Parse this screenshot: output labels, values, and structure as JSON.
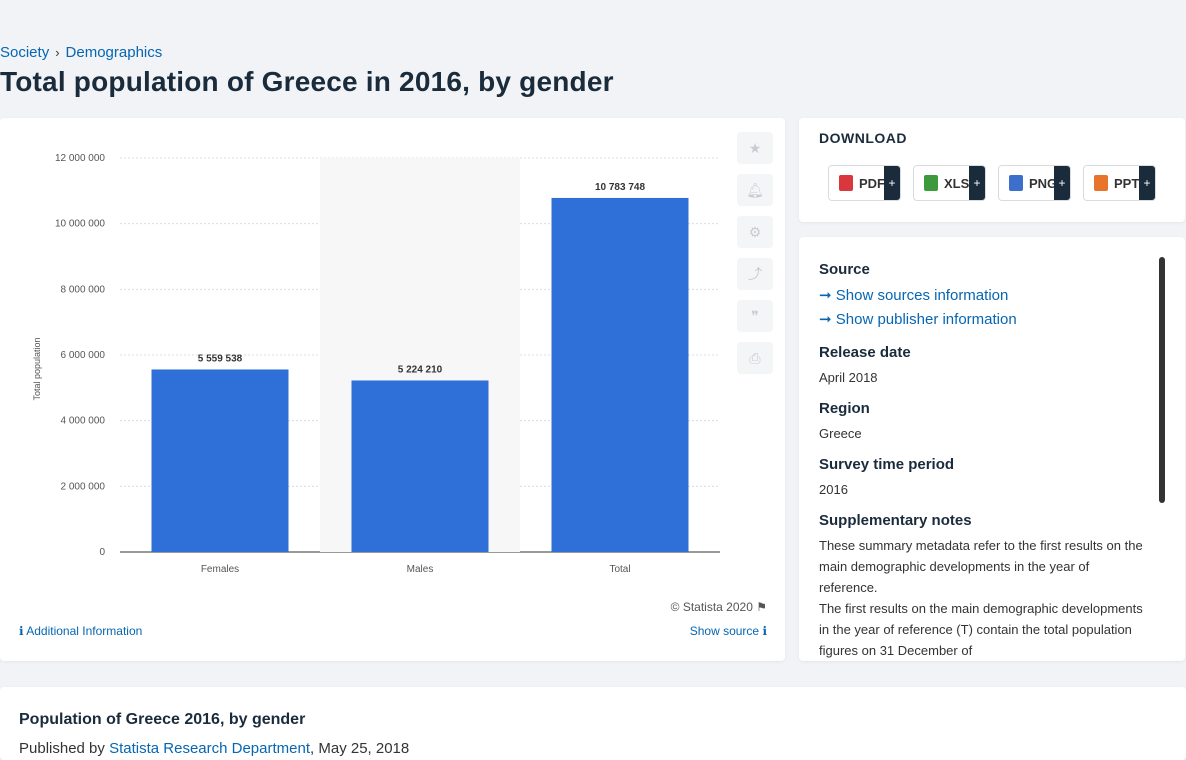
{
  "breadcrumb": {
    "items": [
      "Society",
      "Demographics"
    ],
    "separator": "›"
  },
  "page": {
    "title": "Total population of Greece in 2016, by gender"
  },
  "chart_data": {
    "type": "bar",
    "categories": [
      "Females",
      "Males",
      "Total"
    ],
    "values": [
      5559538,
      5224210,
      10783748
    ],
    "value_labels": [
      "5 559 538",
      "5 224 210",
      "10 783 748"
    ],
    "ylabel": "Total population",
    "ylim": [
      0,
      12000000
    ],
    "yticks": [
      0,
      2000000,
      4000000,
      6000000,
      8000000,
      10000000,
      12000000
    ],
    "ytick_labels": [
      "0",
      "2 000 000",
      "4 000 000",
      "6 000 000",
      "8 000 000",
      "10 000 000",
      "12 000 000"
    ],
    "grid": true,
    "highlight_category": "Males",
    "bar_color": "#2f6fd8"
  },
  "chart_footer": {
    "copyright": "© Statista 2020",
    "additional_info": "Additional Information",
    "show_source": "Show source"
  },
  "side_icons": [
    "star-icon",
    "bell-icon",
    "gear-icon",
    "share-icon",
    "quote-icon",
    "print-icon"
  ],
  "download": {
    "title": "DOWNLOAD",
    "buttons": [
      {
        "label": "PDF",
        "color": "#d9363e"
      },
      {
        "label": "XLS",
        "color": "#3c9a3c"
      },
      {
        "label": "PNG",
        "color": "#3b6fc9"
      },
      {
        "label": "PPT",
        "color": "#e8732a"
      }
    ],
    "plus": "+"
  },
  "info": {
    "source_heading": "Source",
    "show_sources": "Show sources information",
    "show_publisher": "Show publisher information",
    "release_heading": "Release date",
    "release_value": "April 2018",
    "region_heading": "Region",
    "region_value": "Greece",
    "survey_heading": "Survey time period",
    "survey_value": "2016",
    "notes_heading": "Supplementary notes",
    "notes_p1": "These summary metadata refer to the first results on the main demographic developments in the year of reference.",
    "notes_p2": "The first results on the main demographic developments in the year of reference (T) contain the total population figures on 31 December of"
  },
  "bottom": {
    "title": "Population of Greece 2016, by gender",
    "published_by": "Published by",
    "publisher": "Statista Research Department",
    "date": ", May 25, 2018"
  }
}
